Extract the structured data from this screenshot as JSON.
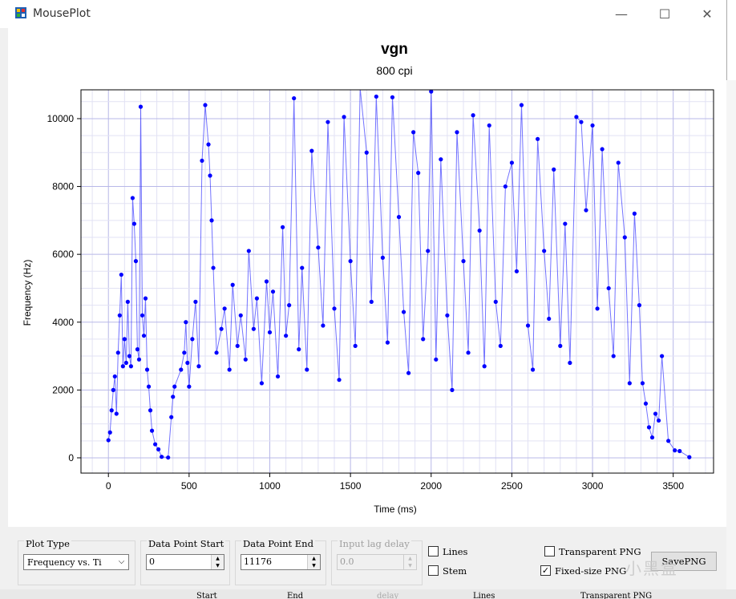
{
  "window": {
    "title": "MousePlot",
    "minimize_glyph": "—",
    "maximize_glyph": "☐",
    "close_glyph": "✕"
  },
  "chart_data": {
    "type": "scatter",
    "title": "vgn",
    "subtitle": "800 cpi",
    "xlabel": "Time (ms)",
    "ylabel": "Frequency (Hz)",
    "xlim": [
      -170,
      3750
    ],
    "ylim": [
      -450,
      10850
    ],
    "xticks": [
      0,
      500,
      1000,
      1500,
      2000,
      2500,
      3000,
      3500
    ],
    "yticks": [
      0,
      2000,
      4000,
      6000,
      8000,
      10000
    ],
    "grid": true,
    "point_color": "#0000ff",
    "line_color": "#0000ff",
    "series": [
      {
        "values": [
          [
            0,
            520
          ],
          [
            10,
            750
          ],
          [
            20,
            1400
          ],
          [
            30,
            2000
          ],
          [
            40,
            2400
          ],
          [
            50,
            1300
          ],
          [
            60,
            3100
          ],
          [
            70,
            4200
          ],
          [
            80,
            5400
          ],
          [
            90,
            2700
          ],
          [
            100,
            3500
          ],
          [
            110,
            2800
          ],
          [
            120,
            4600
          ],
          [
            130,
            3000
          ],
          [
            140,
            2700
          ],
          [
            150,
            7660
          ],
          [
            160,
            6900
          ],
          [
            170,
            5800
          ],
          [
            180,
            3200
          ],
          [
            190,
            2900
          ],
          [
            200,
            10350
          ],
          [
            210,
            4200
          ],
          [
            220,
            3600
          ],
          [
            230,
            4700
          ],
          [
            240,
            2600
          ],
          [
            250,
            2100
          ],
          [
            260,
            1400
          ],
          [
            270,
            800
          ],
          [
            290,
            400
          ],
          [
            310,
            250
          ],
          [
            330,
            30
          ],
          [
            370,
            10
          ],
          [
            390,
            1200
          ],
          [
            400,
            1800
          ],
          [
            410,
            2100
          ],
          [
            450,
            2600
          ],
          [
            470,
            3100
          ],
          [
            480,
            4000
          ],
          [
            490,
            2800
          ],
          [
            500,
            2100
          ],
          [
            520,
            3500
          ],
          [
            540,
            4600
          ],
          [
            560,
            2700
          ],
          [
            580,
            8760
          ],
          [
            600,
            10400
          ],
          [
            620,
            9240
          ],
          [
            630,
            8320
          ],
          [
            640,
            7000
          ],
          [
            650,
            5600
          ],
          [
            670,
            3100
          ],
          [
            700,
            3800
          ],
          [
            720,
            4400
          ],
          [
            750,
            2600
          ],
          [
            770,
            5100
          ],
          [
            800,
            3300
          ],
          [
            820,
            4200
          ],
          [
            850,
            2900
          ],
          [
            870,
            6100
          ],
          [
            900,
            3800
          ],
          [
            920,
            4700
          ],
          [
            950,
            2200
          ],
          [
            980,
            5200
          ],
          [
            1000,
            3700
          ],
          [
            1020,
            4900
          ],
          [
            1050,
            2400
          ],
          [
            1080,
            6800
          ],
          [
            1100,
            3600
          ],
          [
            1120,
            4500
          ],
          [
            1150,
            10600
          ],
          [
            1180,
            3200
          ],
          [
            1200,
            5600
          ],
          [
            1230,
            2600
          ],
          [
            1260,
            9050
          ],
          [
            1300,
            6200
          ],
          [
            1330,
            3900
          ],
          [
            1360,
            9900
          ],
          [
            1400,
            4400
          ],
          [
            1430,
            2300
          ],
          [
            1460,
            10050
          ],
          [
            1500,
            5800
          ],
          [
            1530,
            3300
          ],
          [
            1560,
            10900
          ],
          [
            1600,
            9000
          ],
          [
            1630,
            4600
          ],
          [
            1660,
            10650
          ],
          [
            1700,
            5900
          ],
          [
            1730,
            3400
          ],
          [
            1760,
            10630
          ],
          [
            1800,
            7100
          ],
          [
            1830,
            4300
          ],
          [
            1860,
            2500
          ],
          [
            1890,
            9600
          ],
          [
            1920,
            8400
          ],
          [
            1950,
            3500
          ],
          [
            1980,
            6100
          ],
          [
            2000,
            10800
          ],
          [
            2030,
            2900
          ],
          [
            2060,
            8800
          ],
          [
            2100,
            4200
          ],
          [
            2130,
            2000
          ],
          [
            2160,
            9600
          ],
          [
            2200,
            5800
          ],
          [
            2230,
            3100
          ],
          [
            2260,
            10100
          ],
          [
            2300,
            6700
          ],
          [
            2330,
            2700
          ],
          [
            2360,
            9800
          ],
          [
            2400,
            4600
          ],
          [
            2430,
            3300
          ],
          [
            2460,
            8000
          ],
          [
            2500,
            8700
          ],
          [
            2530,
            5500
          ],
          [
            2560,
            10400
          ],
          [
            2600,
            3900
          ],
          [
            2630,
            2600
          ],
          [
            2660,
            9400
          ],
          [
            2700,
            6100
          ],
          [
            2730,
            4100
          ],
          [
            2760,
            8500
          ],
          [
            2800,
            3300
          ],
          [
            2830,
            6900
          ],
          [
            2860,
            2800
          ],
          [
            2900,
            10050
          ],
          [
            2930,
            9900
          ],
          [
            2960,
            7300
          ],
          [
            3000,
            9800
          ],
          [
            3030,
            4400
          ],
          [
            3060,
            9100
          ],
          [
            3100,
            5000
          ],
          [
            3130,
            3000
          ],
          [
            3160,
            8700
          ],
          [
            3200,
            6500
          ],
          [
            3230,
            2200
          ],
          [
            3260,
            7200
          ],
          [
            3290,
            4500
          ],
          [
            3310,
            2200
          ],
          [
            3330,
            1600
          ],
          [
            3350,
            900
          ],
          [
            3370,
            600
          ],
          [
            3390,
            1300
          ],
          [
            3410,
            1100
          ],
          [
            3430,
            3000
          ],
          [
            3470,
            500
          ],
          [
            3510,
            220
          ],
          [
            3540,
            200
          ],
          [
            3600,
            20
          ]
        ]
      }
    ]
  },
  "controls": {
    "plot_type_label": "Plot Type",
    "plot_type_value": "Frequency vs. Ti",
    "combo_arrow": "⌵",
    "data_point_start_label": "Data Point Start",
    "data_point_start_value": "0",
    "data_point_end_label": "Data Point End",
    "data_point_end_value": "11176",
    "input_lag_label": "Input lag delay",
    "input_lag_value": "0.0",
    "spin_up": "▲",
    "spin_down": "▼",
    "lines_label": "Lines",
    "lines_checked": false,
    "stem_label": "Stem",
    "stem_checked": false,
    "transparent_png_label": "Transparent PNG",
    "transparent_png_checked": false,
    "fixed_size_png_label": "Fixed-size PNG",
    "fixed_size_png_checked": true,
    "check_mark": "✓",
    "save_button_label": "SavePNG"
  },
  "watermark": "小黑盒",
  "background_window": {
    "labels": [
      "Start",
      "End",
      "delay",
      "Lines",
      "Transparent PNG"
    ]
  }
}
